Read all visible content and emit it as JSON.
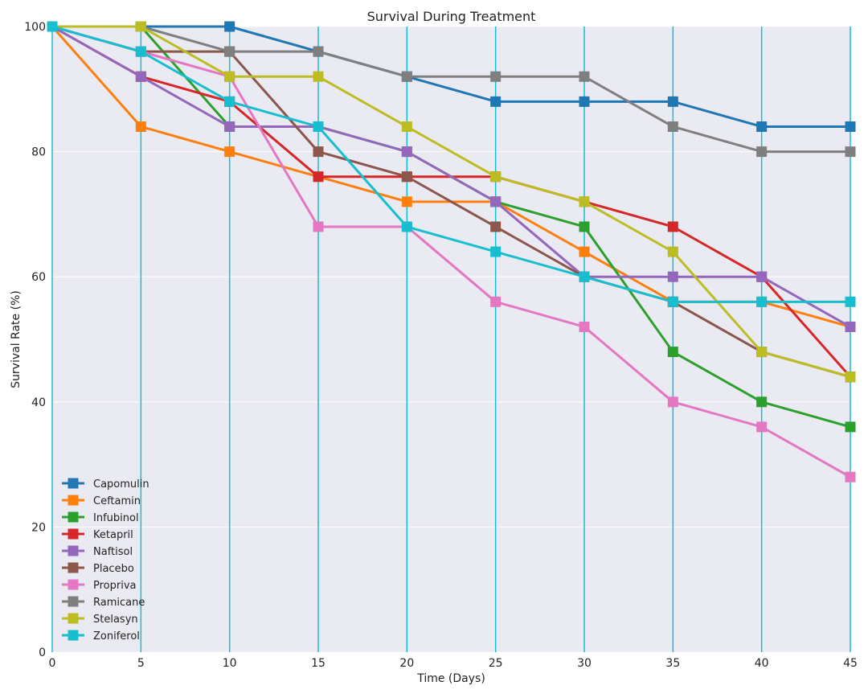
{
  "chart_data": {
    "type": "line",
    "title": "Survival During Treatment",
    "xlabel": "Time (Days)",
    "ylabel": "Survival Rate (%)",
    "x": [
      0,
      5,
      10,
      15,
      20,
      25,
      30,
      35,
      40,
      45
    ],
    "xlim": [
      0,
      45
    ],
    "ylim": [
      0,
      100
    ],
    "xticks": [
      0,
      5,
      10,
      15,
      20,
      25,
      30,
      35,
      40,
      45
    ],
    "yticks": [
      0,
      20,
      40,
      60,
      80,
      100
    ],
    "grid": true,
    "legend_position": "lower-left",
    "marker": "square",
    "background_color": "#EAEAF2",
    "vertical_line_color": "#17BECF",
    "series": [
      {
        "name": "Capomulin",
        "color": "#1F77B4",
        "values": [
          100,
          100,
          100,
          96,
          92,
          88,
          88,
          88,
          84,
          84
        ]
      },
      {
        "name": "Ceftamin",
        "color": "#FF7F0E",
        "values": [
          100,
          84,
          80,
          76,
          72,
          72,
          64,
          56,
          56,
          52
        ]
      },
      {
        "name": "Infubinol",
        "color": "#2CA02C",
        "values": [
          100,
          100,
          84,
          84,
          80,
          72,
          68,
          48,
          40,
          36
        ]
      },
      {
        "name": "Ketapril",
        "color": "#D62728",
        "values": [
          100,
          92,
          88,
          76,
          76,
          76,
          72,
          68,
          60,
          44
        ]
      },
      {
        "name": "Naftisol",
        "color": "#9467BD",
        "values": [
          100,
          92,
          84,
          84,
          80,
          72,
          60,
          60,
          60,
          52
        ]
      },
      {
        "name": "Placebo",
        "color": "#8C564B",
        "values": [
          100,
          96,
          96,
          80,
          76,
          68,
          60,
          56,
          48,
          44
        ]
      },
      {
        "name": "Propriva",
        "color": "#E377C2",
        "values": [
          100,
          96,
          92,
          68,
          68,
          56,
          52,
          40,
          36,
          28
        ]
      },
      {
        "name": "Ramicane",
        "color": "#7F7F7F",
        "values": [
          100,
          100,
          96,
          96,
          92,
          92,
          92,
          84,
          80,
          80
        ]
      },
      {
        "name": "Stelasyn",
        "color": "#BCBD22",
        "values": [
          100,
          100,
          92,
          92,
          84,
          76,
          72,
          64,
          48,
          44
        ]
      },
      {
        "name": "Zoniferol",
        "color": "#17BECF",
        "values": [
          100,
          96,
          88,
          84,
          68,
          64,
          60,
          56,
          56,
          56
        ]
      }
    ]
  }
}
